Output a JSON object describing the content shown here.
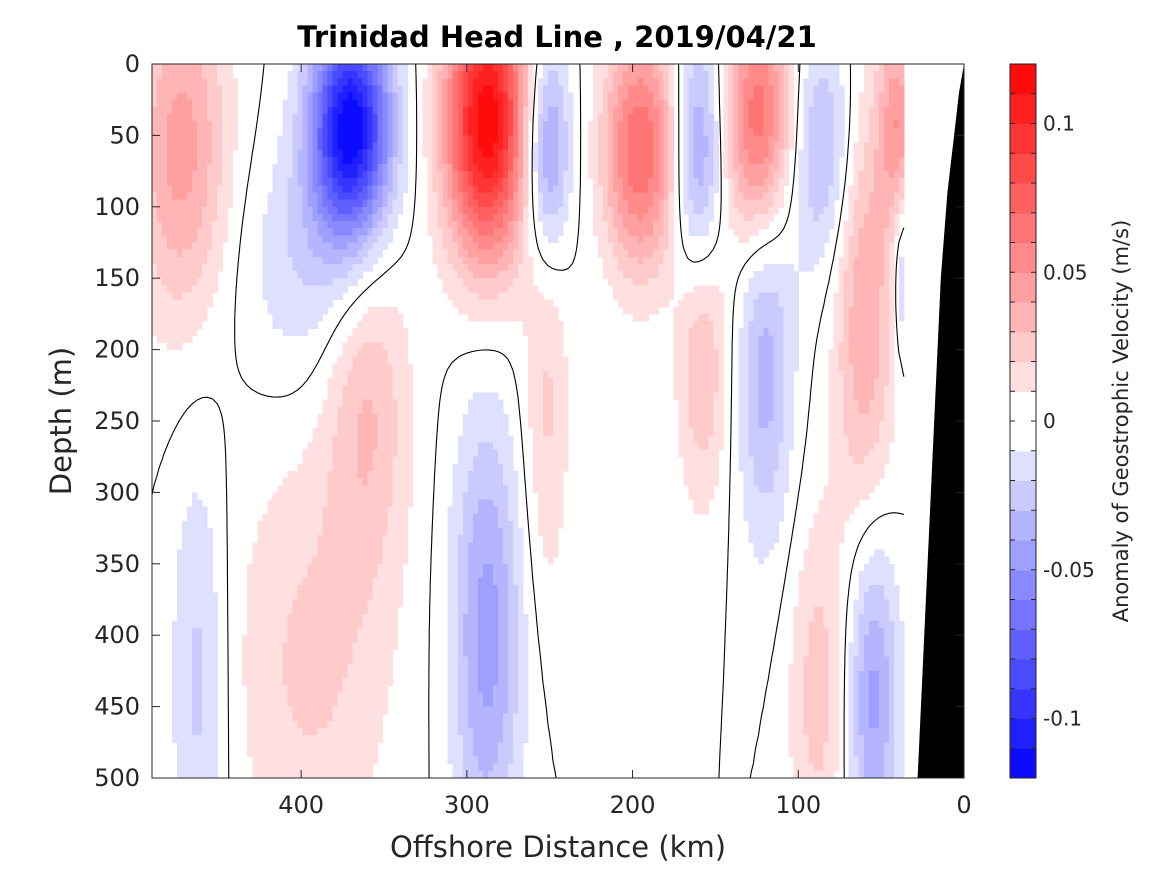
{
  "chart_data": {
    "type": "contour",
    "title": "Trinidad Head Line , 2019/04/21",
    "xlabel": "Offshore Distance (km)",
    "ylabel": "Depth (m)",
    "xlim": [
      490,
      0
    ],
    "ylim": [
      0,
      500
    ],
    "x_reversed": true,
    "y_reversed": true,
    "x_ticks": [
      400,
      300,
      200,
      100,
      0
    ],
    "y_ticks": [
      0,
      50,
      100,
      150,
      200,
      250,
      300,
      350,
      400,
      450,
      500
    ],
    "colorbar": {
      "label": "Anomaly of Geostrophic Velocity (m/s)",
      "range": [
        -0.12,
        0.12
      ],
      "levels": [
        -0.12,
        -0.11,
        -0.1,
        -0.09,
        -0.08,
        -0.07,
        -0.06,
        -0.05,
        -0.04,
        -0.03,
        -0.02,
        -0.01,
        0,
        0.01,
        0.02,
        0.03,
        0.04,
        0.05,
        0.06,
        0.07,
        0.08,
        0.09,
        0.1,
        0.11,
        0.12
      ],
      "tick_values": [
        0.1,
        0.05,
        0,
        -0.05,
        -0.1
      ],
      "tick_labels": [
        "0.1",
        "0.05",
        "0",
        "-0.05",
        "-0.1"
      ],
      "colormap": "blue-white-red"
    },
    "cores": [
      {
        "x": 472,
        "z": 60,
        "amp": 0.045,
        "sx": 20,
        "sz": 85
      },
      {
        "x": 462,
        "z": 430,
        "amp": -0.025,
        "sx": 12,
        "sz": 110
      },
      {
        "x": 395,
        "z": 140,
        "amp": -0.02,
        "sx": 30,
        "sz": 60
      },
      {
        "x": 370,
        "z": 45,
        "amp": -0.12,
        "sx": 17,
        "sz": 55
      },
      {
        "x": 360,
        "z": 230,
        "amp": 0.03,
        "sx": 18,
        "sz": 90
      },
      {
        "x": 395,
        "z": 420,
        "amp": 0.022,
        "sx": 35,
        "sz": 110
      },
      {
        "x": 288,
        "z": 40,
        "amp": 0.118,
        "sx": 18,
        "sz": 70
      },
      {
        "x": 288,
        "z": 400,
        "amp": -0.045,
        "sx": 15,
        "sz": 110
      },
      {
        "x": 252,
        "z": 60,
        "amp": -0.055,
        "sx": 10,
        "sz": 55
      },
      {
        "x": 252,
        "z": 240,
        "amp": 0.022,
        "sx": 10,
        "sz": 100
      },
      {
        "x": 195,
        "z": 60,
        "amp": 0.07,
        "sx": 16,
        "sz": 60
      },
      {
        "x": 160,
        "z": 70,
        "amp": -0.055,
        "sx": 11,
        "sz": 65
      },
      {
        "x": 158,
        "z": 190,
        "amp": 0.035,
        "sx": 11,
        "sz": 80
      },
      {
        "x": 124,
        "z": 40,
        "amp": 0.07,
        "sx": 15,
        "sz": 60
      },
      {
        "x": 120,
        "z": 210,
        "amp": -0.035,
        "sx": 12,
        "sz": 90
      },
      {
        "x": 86,
        "z": 60,
        "amp": -0.035,
        "sx": 14,
        "sz": 60
      },
      {
        "x": 88,
        "z": 440,
        "amp": 0.025,
        "sx": 13,
        "sz": 90
      },
      {
        "x": 60,
        "z": 170,
        "amp": 0.04,
        "sx": 13,
        "sz": 110
      },
      {
        "x": 55,
        "z": 440,
        "amp": -0.045,
        "sx": 11,
        "sz": 80
      },
      {
        "x": 40,
        "z": 40,
        "amp": 0.045,
        "sx": 8,
        "sz": 50
      },
      {
        "x": 37,
        "z": 150,
        "amp": -0.03,
        "sx": 4,
        "sz": 40
      }
    ],
    "bathymetry": {
      "fill": "#000000",
      "x": [
        28,
        18,
        14,
        10,
        6,
        3,
        0,
        0,
        28
      ],
      "z": [
        500,
        250,
        150,
        90,
        50,
        20,
        0,
        500,
        500
      ]
    },
    "no_data_region": {
      "x_min": 0,
      "x_max": 35,
      "z_min": 0,
      "z_max": 500
    }
  }
}
